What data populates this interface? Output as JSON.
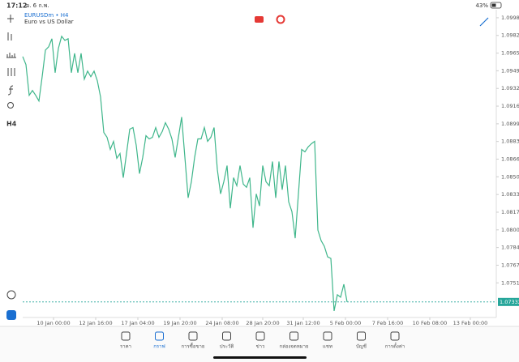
{
  "status_bar": {
    "time": "17:12",
    "date": "อ. 6 ก.พ.",
    "battery": "43%"
  },
  "symbol": {
    "title": "EURUSDm • H4",
    "description": "Euro vs US Dollar"
  },
  "left_toolbar": {
    "timeframe": "H4"
  },
  "chart_data": {
    "type": "line",
    "x": [
      0,
      1,
      2,
      3,
      4,
      5,
      6,
      7,
      8,
      9,
      10,
      11,
      12,
      13,
      14,
      15,
      16,
      17,
      18,
      19,
      20,
      21,
      22,
      23,
      24,
      25,
      26,
      27,
      28,
      29,
      30,
      31,
      32,
      33,
      34,
      35,
      36,
      37,
      38,
      39,
      40,
      41,
      42,
      43,
      44,
      45,
      46,
      47,
      48,
      49,
      50,
      51,
      52,
      53,
      54,
      55,
      56,
      57,
      58,
      59,
      60,
      61,
      62,
      63,
      64,
      65,
      66,
      67,
      68,
      69,
      70,
      71,
      72,
      73,
      74,
      75,
      76,
      77,
      78,
      79,
      80,
      81,
      82,
      83,
      84,
      85,
      86,
      87,
      88,
      89,
      90,
      91,
      92,
      93,
      94,
      95,
      96,
      97,
      98,
      99,
      100
    ],
    "series": [
      {
        "name": "EURUSDm",
        "color": "#3fb68b",
        "values": [
          1.09623,
          1.09548,
          1.09261,
          1.09306,
          1.09261,
          1.09208,
          1.09435,
          1.09683,
          1.09714,
          1.09789,
          1.09472,
          1.09699,
          1.09812,
          1.09774,
          1.09789,
          1.09472,
          1.09653,
          1.09472,
          1.09653,
          1.09412,
          1.09487,
          1.09435,
          1.09487,
          1.09397,
          1.09246,
          1.08914,
          1.08869,
          1.08756,
          1.08831,
          1.08673,
          1.08718,
          1.08492,
          1.08718,
          1.08945,
          1.0896,
          1.08794,
          1.0853,
          1.08681,
          1.08884,
          1.08854,
          1.08869,
          1.0896,
          1.08869,
          1.08922,
          1.09005,
          1.08945,
          1.08854,
          1.08681,
          1.08869,
          1.09058,
          1.08681,
          1.08304,
          1.08454,
          1.08681,
          1.08854,
          1.08854,
          1.0896,
          1.08831,
          1.08869,
          1.0896,
          1.08568,
          1.08341,
          1.08454,
          1.08605,
          1.08206,
          1.08492,
          1.08417,
          1.08605,
          1.08432,
          1.08402,
          1.08492,
          1.08025,
          1.08341,
          1.08228,
          1.08605,
          1.08454,
          1.08417,
          1.08643,
          1.08304,
          1.08643,
          1.08379,
          1.08605,
          1.08266,
          1.08175,
          1.07927,
          1.08341,
          1.08756,
          1.08733,
          1.08779,
          1.08809,
          1.08831,
          1.08002,
          1.07904,
          1.07851,
          1.07753,
          1.07738,
          1.07248,
          1.07399,
          1.07376,
          1.07497,
          1.07332
        ]
      }
    ],
    "xlim": [
      0,
      146
    ],
    "xticks": [
      {
        "value": 9.5,
        "label": "10 Jan 00:00"
      },
      {
        "value": 22.5,
        "label": "12 Jan 16:00"
      },
      {
        "value": 35.5,
        "label": "17 Jan 04:00"
      },
      {
        "value": 48.5,
        "label": "19 Jan 20:00"
      },
      {
        "value": 61.5,
        "label": "24 Jan 08:00"
      },
      {
        "value": 74,
        "label": "28 Jan 20:00"
      },
      {
        "value": 86.5,
        "label": "31 Jan 12:00"
      },
      {
        "value": 99.5,
        "label": "5 Feb 00:00"
      },
      {
        "value": 112.5,
        "label": "7 Feb 16:00"
      },
      {
        "value": 125.5,
        "label": "10 Feb 08:00"
      },
      {
        "value": 138,
        "label": "13 Feb 00:00"
      }
    ],
    "ylim": [
      1.0724,
      1.1006
    ],
    "yticks": [
      1.09985,
      1.0982,
      1.09655,
      {
        "value": 1.0949,
        "label": "1.09490"
      },
      1.09325,
      {
        "value": 1.0916,
        "label": "1.09160"
      },
      1.08995,
      {
        "value": 1.0883,
        "label": "1.08830"
      },
      1.08665,
      {
        "value": 1.085,
        "label": "1.08500"
      },
      1.08335,
      {
        "value": 1.0817,
        "label": "1.08170"
      },
      1.08005,
      {
        "value": 1.0784,
        "label": "1.07840"
      },
      1.07675,
      {
        "value": 1.0751,
        "label": "1.07510"
      }
    ],
    "current_price": 1.07332,
    "current_color": "#26a69a"
  },
  "tab_bar": [
    "ราคา",
    "กราฟ",
    "การซื้อขาย",
    "ประวัติ",
    "ข่าว",
    "กล่องจดหมาย",
    "แชท",
    "บัญชี",
    "การตั้งค่า"
  ]
}
